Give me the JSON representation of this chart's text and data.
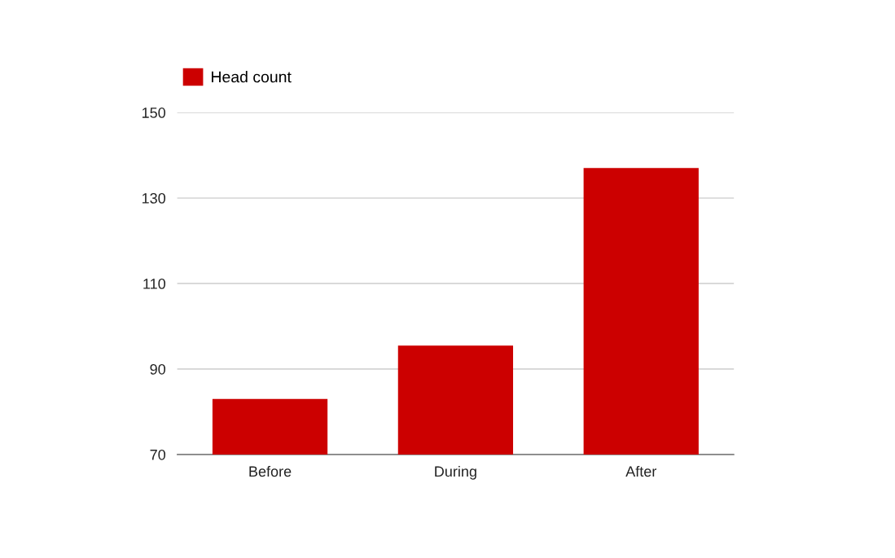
{
  "chart_data": {
    "type": "bar",
    "categories": [
      "Before",
      "During",
      "After"
    ],
    "series": [
      {
        "name": "Head count",
        "color": "#cc0000",
        "values": [
          83,
          95.5,
          137
        ]
      }
    ],
    "ylim": [
      70,
      150
    ],
    "yticks": [
      70,
      90,
      110,
      130,
      150
    ],
    "grid": "y",
    "legend": "top left"
  }
}
